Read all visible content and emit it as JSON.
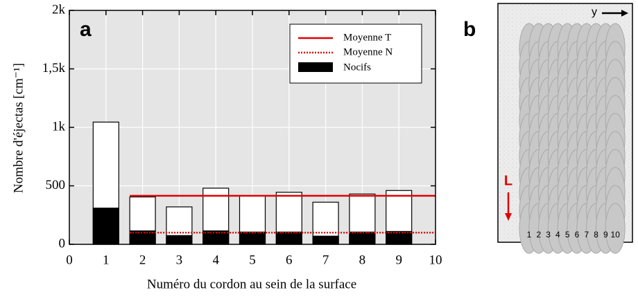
{
  "chart_data": {
    "type": "bar",
    "panel_label": "a",
    "x_label": "Numéro du cordon au sein de la surface",
    "y_label": "Nombre d'éjectas [cm⁻¹]",
    "x": [
      1,
      2,
      3,
      4,
      5,
      6,
      7,
      8,
      9
    ],
    "series": [
      {
        "color": "#ffffff",
        "values": [
          1045,
          405,
          320,
          480,
          415,
          445,
          360,
          430,
          460
        ]
      },
      {
        "name": "Nocifs",
        "color": "#000000",
        "values": [
          310,
          115,
          75,
          115,
          105,
          105,
          70,
          105,
          110
        ]
      }
    ],
    "lines": [
      {
        "name": "Moyenne T",
        "color": "#e00000",
        "style": "solid",
        "x": [
          1.65,
          10
        ],
        "values": [
          415,
          415
        ]
      },
      {
        "name": "Moyenne N",
        "color": "#e00000",
        "style": "dotted",
        "x": [
          1.65,
          10
        ],
        "values": [
          100,
          100
        ]
      }
    ],
    "xlim": [
      0,
      10
    ],
    "xticks": [
      0,
      1,
      2,
      3,
      4,
      5,
      6,
      7,
      8,
      9,
      10
    ],
    "ylim": [
      0,
      2000
    ],
    "yticks": [
      0,
      500,
      {
        "value": 1000,
        "label": "1k"
      },
      {
        "value": 1500,
        "label": "1,5k"
      },
      {
        "value": 2000,
        "label": "2k"
      }
    ],
    "grid": true
  },
  "panel_b": {
    "label": "b",
    "y_label": "y",
    "l_label": "L",
    "numbers": [
      "1",
      "2",
      "3",
      "4",
      "5",
      "6",
      "7",
      "8",
      "9",
      "10"
    ]
  }
}
